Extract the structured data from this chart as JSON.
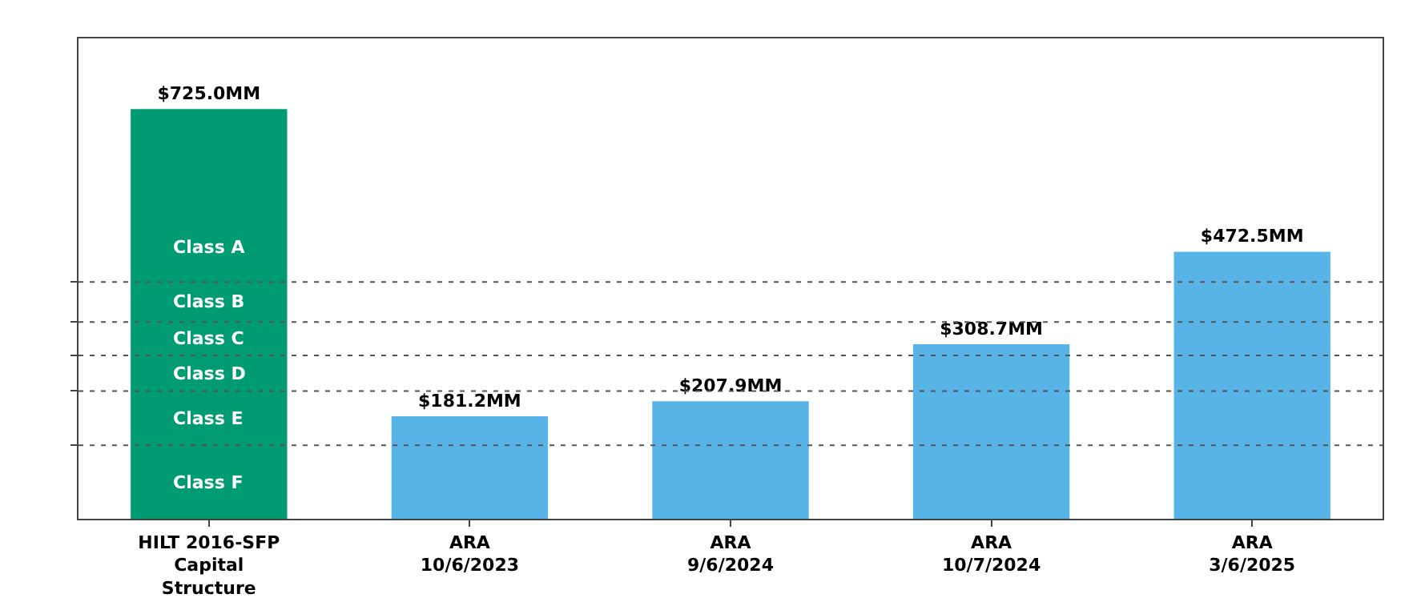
{
  "chart_data": {
    "type": "bar",
    "categories": [
      "HILT 2016-SFP\nCapital\nStructure",
      "ARA\n10/6/2023",
      "ARA\n9/6/2024",
      "ARA\n10/7/2024",
      "ARA\n3/6/2025"
    ],
    "values": [
      725.0,
      181.2,
      207.9,
      308.7,
      472.5
    ],
    "colors": [
      "#009b72",
      "#58b4e6",
      "#58b4e6",
      "#58b4e6",
      "#58b4e6"
    ],
    "value_labels": [
      "$725.0MM",
      "$181.2MM",
      "$207.9MM",
      "$308.7MM",
      "$472.5MM"
    ],
    "ylim": [
      0,
      850
    ],
    "yticks": [
      {
        "value": 130,
        "label": null
      },
      {
        "value": 226,
        "label": null
      },
      {
        "value": 289,
        "label": null
      },
      {
        "value": 348,
        "label": null
      },
      {
        "value": 419,
        "label": null
      }
    ],
    "ref_lines": [
      {
        "axis": "y",
        "value": 130,
        "line_style": "dashed",
        "color": "#555555"
      },
      {
        "axis": "y",
        "value": 226,
        "line_style": "dashed",
        "color": "#555555"
      },
      {
        "axis": "y",
        "value": 289,
        "line_style": "dashed",
        "color": "#555555"
      },
      {
        "axis": "y",
        "value": 348,
        "line_style": "dashed",
        "color": "#555555"
      },
      {
        "axis": "y",
        "value": 419,
        "line_style": "dashed",
        "color": "#555555"
      }
    ],
    "annotations": [
      "Class A",
      "Class B",
      "Class C",
      "Class D",
      "Class E",
      "Class F"
    ],
    "grid": false
  }
}
